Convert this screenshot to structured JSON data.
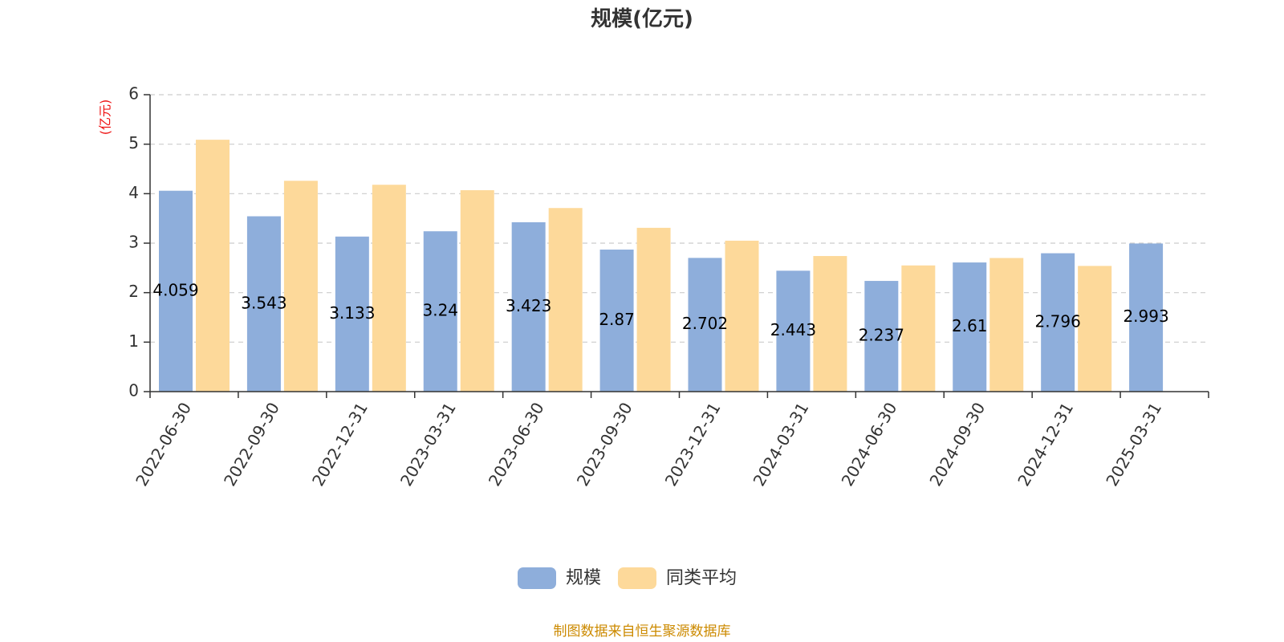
{
  "chart_data": {
    "type": "bar",
    "title": "规模(亿元)",
    "ylabel": "(亿元)",
    "xlabel": "",
    "ylim": [
      0,
      6
    ],
    "yticks": [
      0,
      1,
      2,
      3,
      4,
      5,
      6
    ],
    "grid": true,
    "legend_position": "bottom",
    "categories": [
      "2022-06-30",
      "2022-09-30",
      "2022-12-31",
      "2023-03-31",
      "2023-06-30",
      "2023-09-30",
      "2023-12-31",
      "2024-03-31",
      "2024-06-30",
      "2024-09-30",
      "2024-12-31",
      "2025-03-31"
    ],
    "series": [
      {
        "name": "规模",
        "color": "#8eaedb",
        "values": [
          4.059,
          3.543,
          3.133,
          3.24,
          3.423,
          2.87,
          2.702,
          2.443,
          2.237,
          2.61,
          2.796,
          2.993
        ],
        "labels": [
          "4.059",
          "3.543",
          "3.133",
          "3.24",
          "3.423",
          "2.87",
          "2.702",
          "2.443",
          "2.237",
          "2.61",
          "2.796",
          "2.993"
        ]
      },
      {
        "name": "同类平均",
        "color": "#fdd99a",
        "values": [
          5.09,
          4.26,
          4.18,
          4.07,
          3.71,
          3.31,
          3.05,
          2.74,
          2.55,
          2.7,
          2.54,
          null
        ]
      }
    ],
    "source": "制图数据来自恒生聚源数据库",
    "colors": {
      "ylabel": "#ee1111",
      "source": "#cc8a00",
      "axis": "#333333",
      "grid": "#cccccc"
    }
  }
}
